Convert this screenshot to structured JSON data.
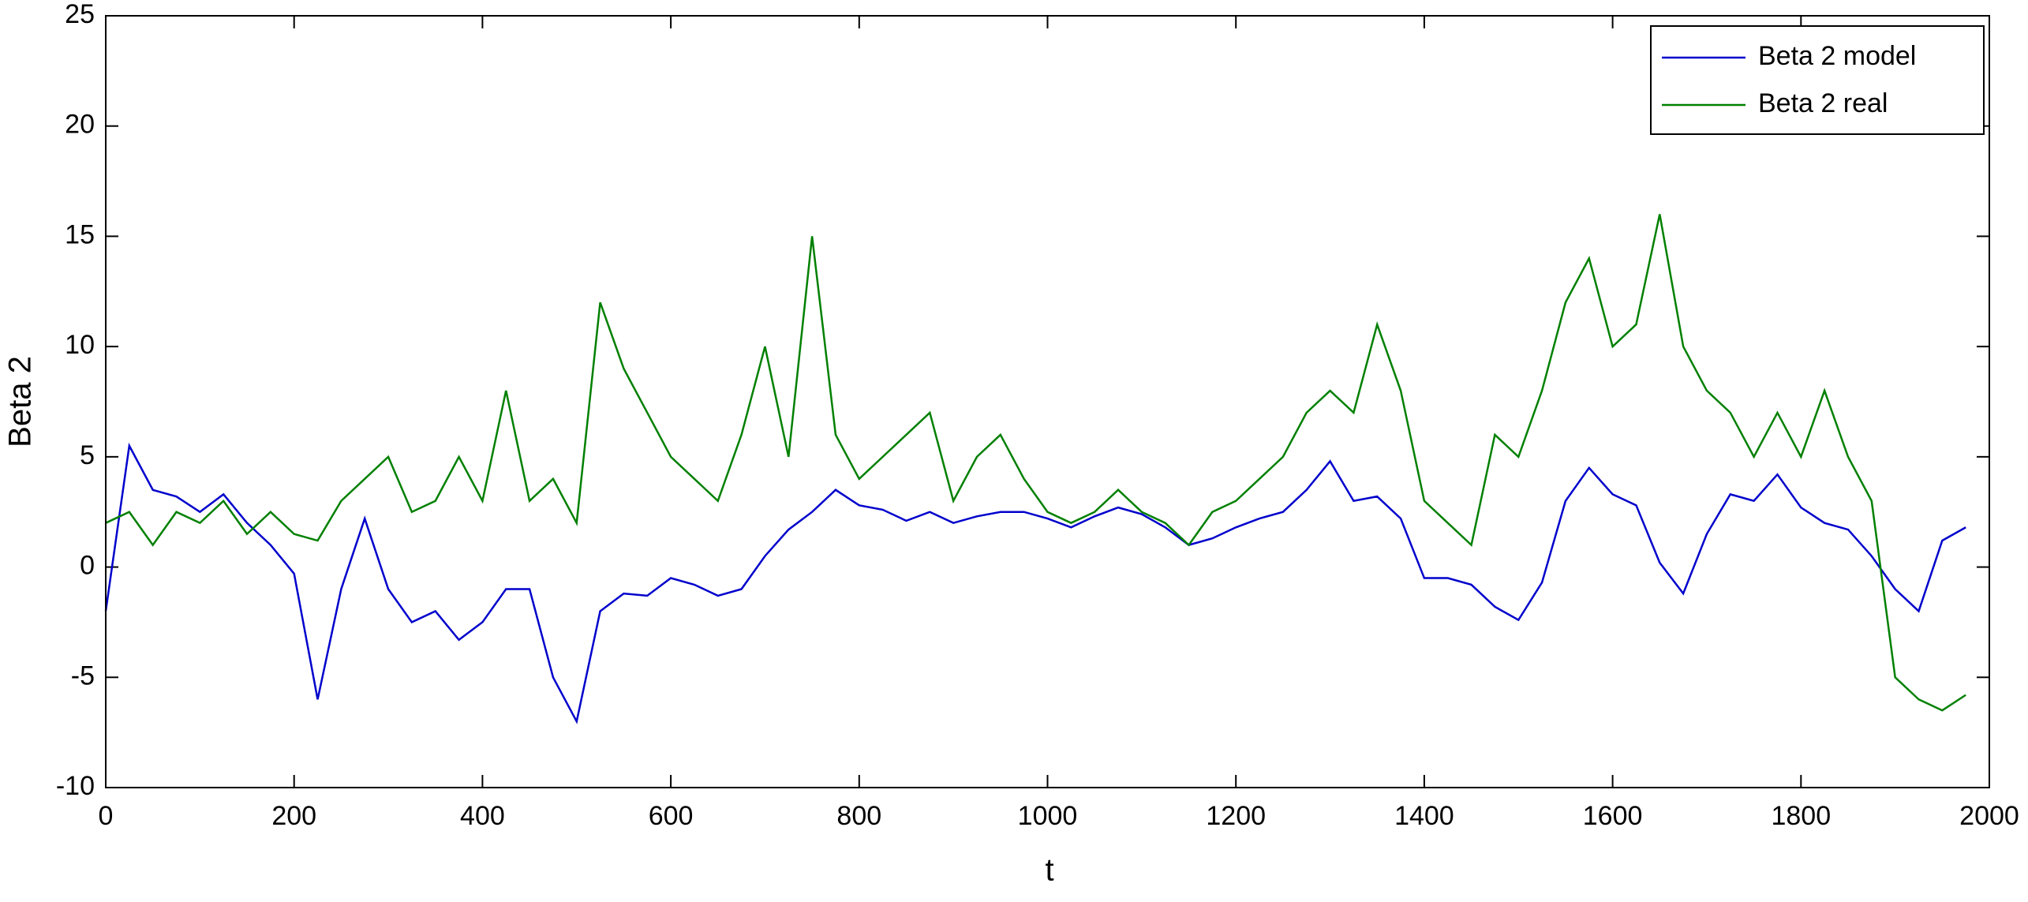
{
  "chart_data": {
    "type": "line",
    "x_label": "t",
    "y_label": "Beta 2",
    "x": [
      0,
      25,
      50,
      75,
      100,
      125,
      150,
      175,
      200,
      225,
      250,
      275,
      300,
      325,
      350,
      375,
      400,
      425,
      450,
      475,
      500,
      525,
      550,
      575,
      600,
      625,
      650,
      675,
      700,
      725,
      750,
      775,
      800,
      825,
      850,
      875,
      900,
      925,
      950,
      975,
      1000,
      1025,
      1050,
      1075,
      1100,
      1125,
      1150,
      1175,
      1200,
      1225,
      1250,
      1275,
      1300,
      1325,
      1350,
      1375,
      1400,
      1425,
      1450,
      1475,
      1500,
      1525,
      1550,
      1575,
      1600,
      1625,
      1650,
      1675,
      1700,
      1725,
      1750,
      1775,
      1800,
      1825,
      1850,
      1875,
      1900,
      1925,
      1950,
      1975
    ],
    "series": [
      {
        "name": "Beta 2 model",
        "color": "#0000cc",
        "values": [
          -2,
          5.5,
          3.5,
          3.2,
          2.5,
          3.3,
          2,
          1,
          -0.3,
          -6,
          -1,
          2.2,
          -1,
          -2.5,
          -2,
          -3.3,
          -2.5,
          -1,
          -1,
          -5,
          -7,
          -2,
          -1.2,
          -1.3,
          -0.5,
          -0.8,
          -1.3,
          -1,
          0.5,
          1.7,
          2.5,
          3.5,
          2.8,
          2.6,
          2.1,
          2.5,
          2,
          2.3,
          2.5,
          2.5,
          2.2,
          1.8,
          2.3,
          2.7,
          2.4,
          1.8,
          1,
          1.3,
          1.8,
          2.2,
          2.5,
          3.5,
          4.8,
          3,
          3.2,
          2.2,
          -0.5,
          -0.5,
          -0.8,
          -1.8,
          -2.4,
          -0.7,
          3,
          4.5,
          3.3,
          2.8,
          0.2,
          -1.2,
          1.5,
          3.3,
          3,
          4.2,
          2.7,
          2,
          1.7,
          0.5,
          -1,
          -2,
          1.2,
          1.8
        ]
      },
      {
        "name": "Beta 2 real",
        "color": "#008000",
        "values": [
          2,
          2.5,
          1,
          2.5,
          2,
          3,
          1.5,
          2.5,
          1.5,
          1.2,
          3,
          4,
          5,
          2.5,
          3,
          5,
          3,
          8,
          3,
          4,
          2,
          12,
          9,
          7,
          5,
          4,
          3,
          6,
          10,
          5,
          15,
          6,
          4,
          5,
          6,
          7,
          3,
          5,
          6,
          4,
          2.5,
          2,
          2.5,
          3.5,
          2.5,
          2,
          1,
          2.5,
          3,
          4,
          5,
          7,
          8,
          7,
          11,
          8,
          3,
          2,
          1,
          6,
          5,
          8,
          12,
          14,
          10,
          11,
          16,
          10,
          8,
          7,
          5,
          7,
          5,
          8,
          5,
          3,
          -5,
          -6,
          -6.5,
          -5.8
        ]
      }
    ],
    "xlim": [
      0,
      2000
    ],
    "xticks": [
      0,
      200,
      400,
      600,
      800,
      1000,
      1200,
      1400,
      1600,
      1800,
      2000
    ],
    "ylim": [
      -10,
      25
    ],
    "yticks": [
      -10,
      -5,
      0,
      5,
      10,
      15,
      20,
      25
    ],
    "legend": "upper right"
  }
}
